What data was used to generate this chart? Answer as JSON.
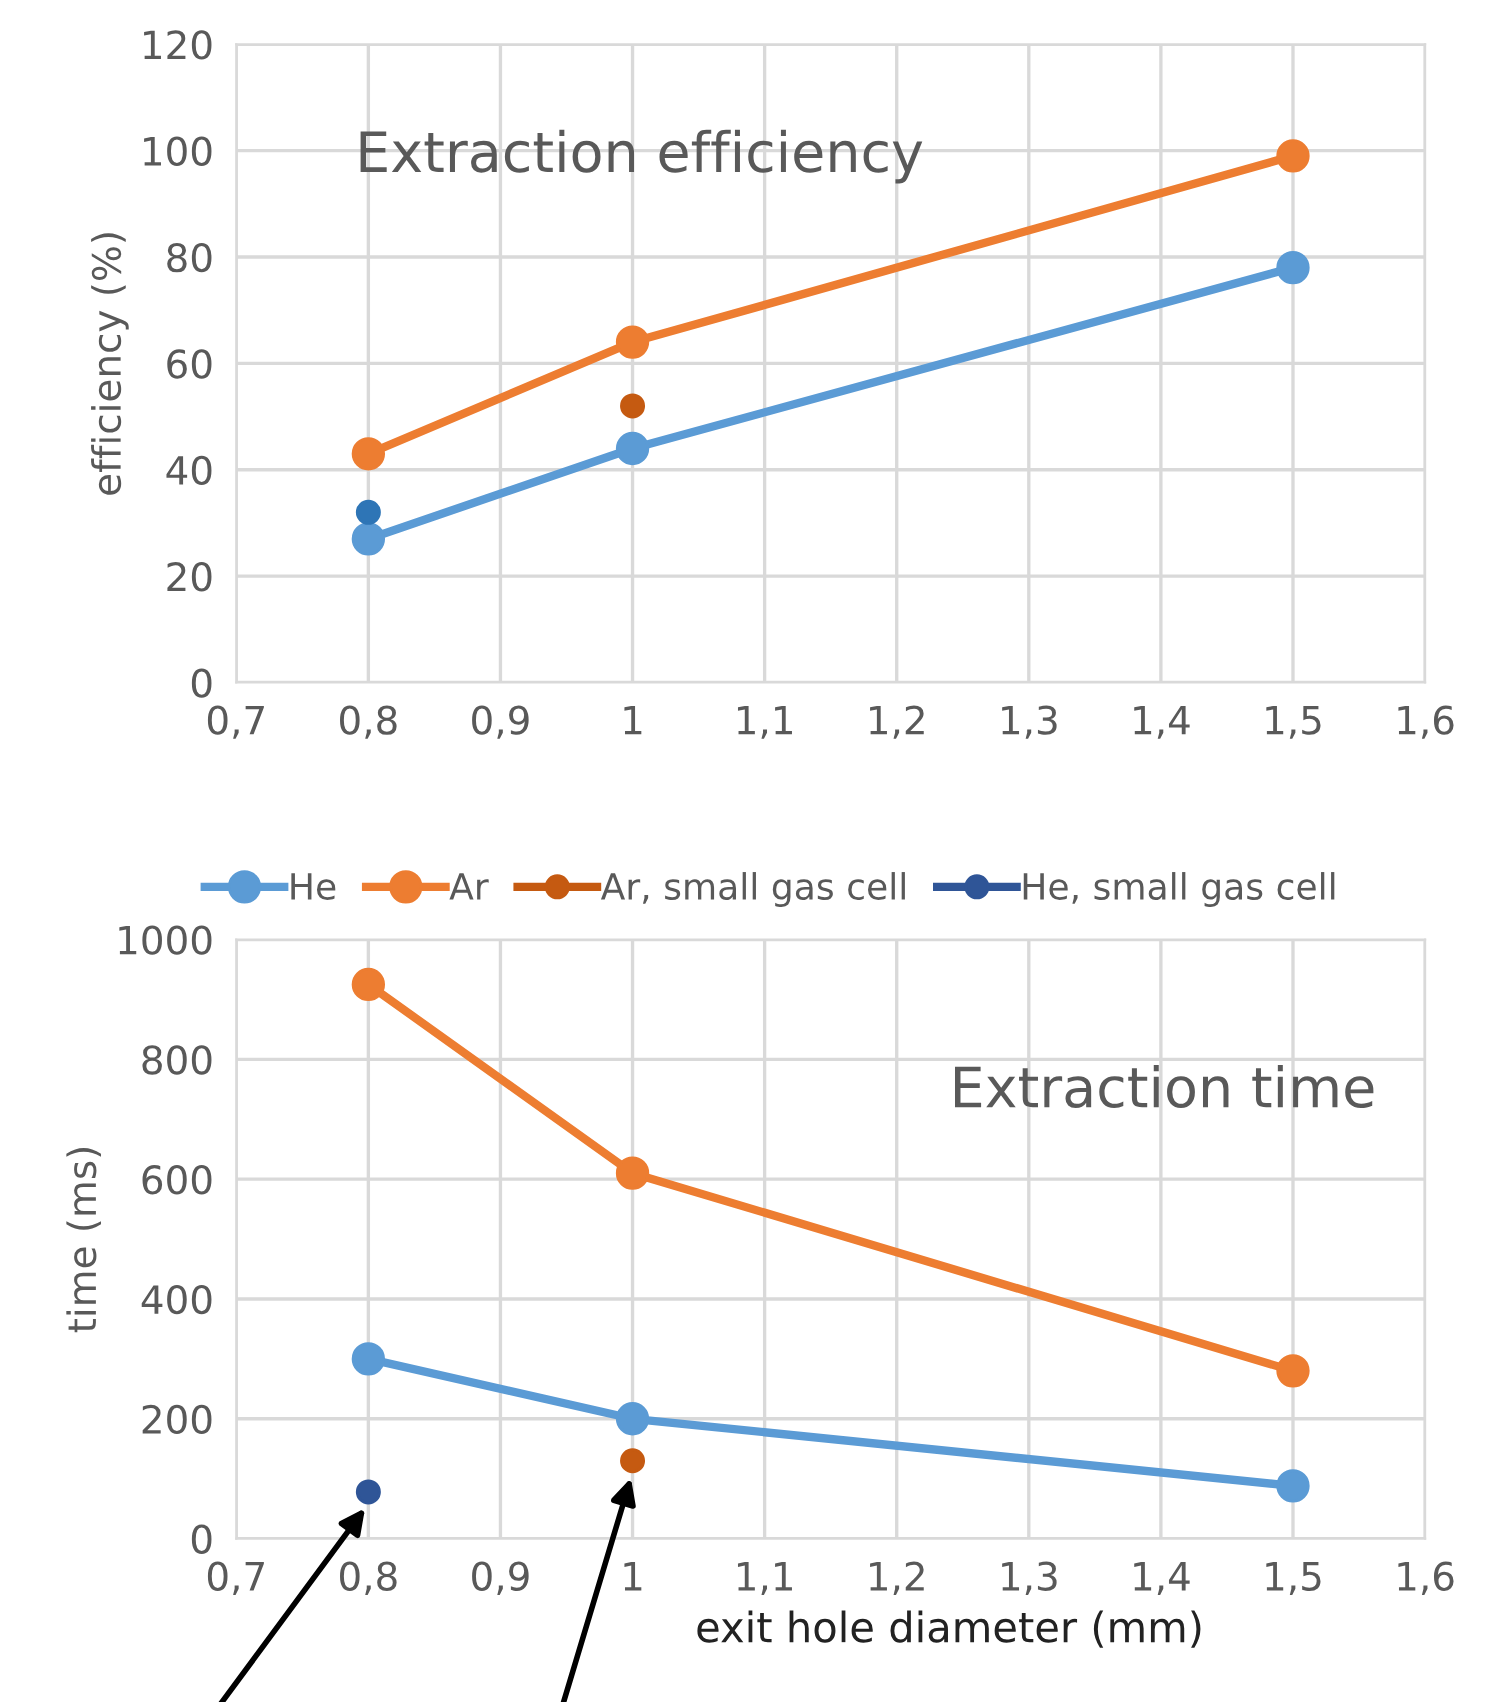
{
  "chart_data": [
    {
      "type": "line",
      "title": "Extraction efficiency",
      "ylabel": "efficiency (%)",
      "xlim": [
        0.7,
        1.6
      ],
      "ylim": [
        0,
        120
      ],
      "xticks": [
        {
          "value": 0.7,
          "label": "0,7"
        },
        {
          "value": 0.8,
          "label": "0,8"
        },
        {
          "value": 0.9,
          "label": "0,9"
        },
        1,
        {
          "value": 1.1,
          "label": "1,1"
        },
        {
          "value": 1.2,
          "label": "1,2"
        },
        {
          "value": 1.3,
          "label": "1,3"
        },
        {
          "value": 1.4,
          "label": "1,4"
        },
        {
          "value": 1.5,
          "label": "1,5"
        },
        {
          "value": 1.6,
          "label": "1,6"
        }
      ],
      "yticks": [
        0,
        20,
        40,
        60,
        80,
        100,
        120
      ],
      "grid": true,
      "marker": "circle",
      "line_style": "solid",
      "series": [
        {
          "color": "#5b9bd5",
          "x": [
            0.8,
            1,
            1.5
          ],
          "values": [
            27,
            44,
            78
          ]
        },
        {
          "color": "#ed7d31",
          "x": [
            0.8,
            1,
            1.5
          ],
          "values": [
            43,
            64,
            99
          ]
        },
        {
          "color": "#c55a11",
          "x": [
            1
          ],
          "values": [
            52
          ]
        },
        {
          "color": "#2e75b6",
          "x": [
            0.8
          ],
          "values": [
            32
          ]
        }
      ]
    },
    {
      "type": "line",
      "title": "Extraction time",
      "xlabel": "exit hole diameter (mm)",
      "ylabel": "time (ms)",
      "xlim": [
        0.7,
        1.6
      ],
      "ylim": [
        0,
        1000
      ],
      "xticks": [
        {
          "value": 0.7,
          "label": "0,7"
        },
        {
          "value": 0.8,
          "label": "0,8"
        },
        {
          "value": 0.9,
          "label": "0,9"
        },
        1,
        {
          "value": 1.1,
          "label": "1,1"
        },
        {
          "value": 1.2,
          "label": "1,2"
        },
        {
          "value": 1.3,
          "label": "1,3"
        },
        {
          "value": 1.4,
          "label": "1,4"
        },
        {
          "value": 1.5,
          "label": "1,5"
        },
        {
          "value": 1.6,
          "label": "1,6"
        }
      ],
      "yticks": [
        0,
        200,
        400,
        600,
        800,
        1000
      ],
      "grid": true,
      "marker": "circle",
      "line_style": "solid",
      "legend": "top",
      "series": [
        {
          "name": "He",
          "color": "#5b9bd5",
          "x": [
            0.8,
            1,
            1.5
          ],
          "values": [
            300,
            200,
            88
          ]
        },
        {
          "name": "Ar",
          "color": "#ed7d31",
          "x": [
            0.8,
            1,
            1.5
          ],
          "values": [
            925,
            610,
            280
          ]
        },
        {
          "name": "Ar, small gas cell",
          "color": "#c55a11",
          "x": [
            1
          ],
          "values": [
            130
          ]
        },
        {
          "name": "He, small gas cell",
          "color": "#2f5597",
          "x": [
            0.8
          ],
          "values": [
            78
          ]
        }
      ]
    }
  ]
}
